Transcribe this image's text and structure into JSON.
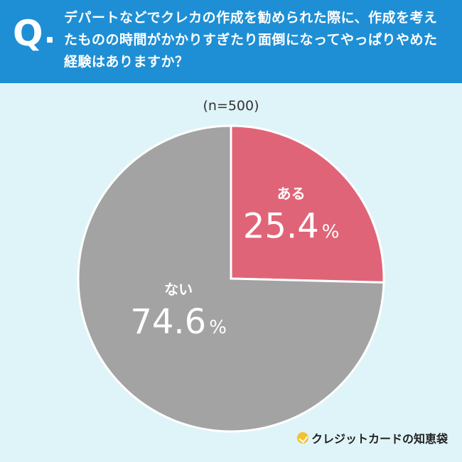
{
  "header": {
    "q_mark": "Q",
    "question": "デパートなどでクレカの作成を勧められた際に、作成を考えたものの時間がかかりすぎたり面倒になってやっぱりやめた経験はありますか？"
  },
  "sample_label": "(n=500)",
  "colors": {
    "header_bg": "#1e8fd5",
    "background": "#dff4f8",
    "slice_aru": "#e06478",
    "slice_nai": "#a3a3a3"
  },
  "chart_data": {
    "type": "pie",
    "title": "",
    "start": "12 o'clock, clockwise",
    "slices": [
      {
        "label": "ある",
        "value": 25.4,
        "display": "25.4",
        "unit": "%",
        "color": "#e06478"
      },
      {
        "label": "ない",
        "value": 74.6,
        "display": "74.6",
        "unit": "%",
        "color": "#a3a3a3"
      }
    ]
  },
  "brand": {
    "logo_text": "クレジットカードの知恵袋",
    "logo_icon": "check-circle-icon"
  }
}
